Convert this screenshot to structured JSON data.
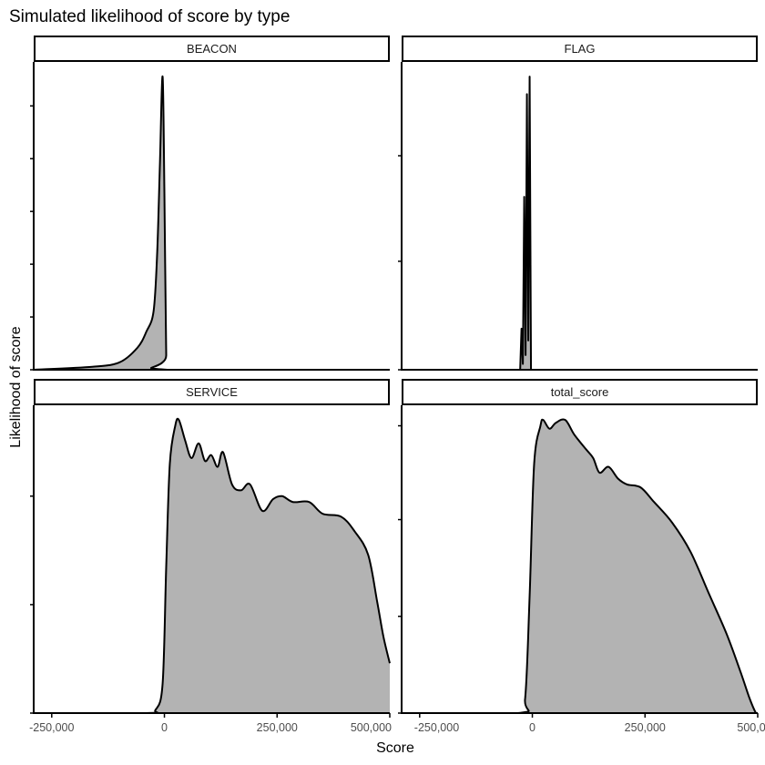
{
  "chart_data": {
    "type": "area",
    "title": "Simulated likelihood of score by type",
    "xlabel": "Score",
    "ylabel": "Likelihood of score",
    "xlim": [
      -290000,
      500000
    ],
    "xticks": [
      -250000,
      0,
      250000,
      500000
    ],
    "xtick_labels": [
      "-250,000",
      "0",
      "250,000",
      "500,000"
    ],
    "y_tick_labels_shown": false,
    "grid": false,
    "fill_color": "#b3b3b3",
    "line_color": "#000000",
    "facets": [
      {
        "name": "BEACON",
        "ylim": [
          0,
          1.05
        ],
        "yticks": [
          0,
          0.18,
          0.36,
          0.54,
          0.72,
          0.9
        ],
        "x": [
          -290000,
          -160000,
          -100000,
          -60000,
          -40000,
          -24000,
          -16000,
          -10000,
          -4000,
          0,
          4000,
          8000,
          500000
        ],
        "y": [
          0,
          0.01,
          0.025,
          0.075,
          0.13,
          0.2,
          0.4,
          0.7,
          1.0,
          0.6,
          0.05,
          0,
          0
        ]
      },
      {
        "name": "FLAG",
        "ylim": [
          0,
          1.05
        ],
        "yticks": [
          0,
          0.37,
          0.73
        ],
        "x": [
          -290000,
          -27000,
          -24000,
          -21000,
          -18000,
          -15000,
          -12000,
          -9000,
          -6000,
          -3000,
          500000
        ],
        "y": [
          0,
          0,
          0.14,
          0.02,
          0.59,
          0.05,
          0.94,
          0.1,
          1.0,
          0,
          0
        ]
      },
      {
        "name": "SERVICE",
        "ylim": [
          0,
          1.05
        ],
        "yticks": [
          0,
          0.37,
          0.74
        ],
        "x": [
          -290000,
          -40000,
          -20000,
          -4000,
          4000,
          12000,
          24000,
          32000,
          46000,
          60000,
          76000,
          90000,
          104000,
          118000,
          130000,
          150000,
          170000,
          190000,
          217000,
          241000,
          261000,
          285000,
          321000,
          351000,
          392000,
          422000,
          452000,
          472000,
          486000,
          500000
        ],
        "y": [
          0,
          0,
          0.01,
          0.1,
          0.5,
          0.85,
          0.98,
          1.0,
          0.93,
          0.87,
          0.92,
          0.86,
          0.88,
          0.84,
          0.89,
          0.78,
          0.76,
          0.78,
          0.69,
          0.73,
          0.74,
          0.72,
          0.72,
          0.68,
          0.67,
          0.62,
          0.54,
          0.38,
          0.26,
          0.17
        ]
      },
      {
        "name": "total_score",
        "ylim": [
          0,
          1.05
        ],
        "yticks": [
          0,
          0.33,
          0.66,
          0.98
        ],
        "x": [
          -290000,
          -32000,
          -16000,
          -6000,
          4000,
          18000,
          24000,
          38000,
          52000,
          73000,
          93000,
          119000,
          135000,
          149000,
          169000,
          190000,
          210000,
          240000,
          270000,
          310000,
          351000,
          391000,
          431000,
          462000,
          482000,
          496000,
          500000
        ],
        "y": [
          0,
          0,
          0.05,
          0.4,
          0.85,
          0.98,
          1.0,
          0.97,
          0.99,
          1.0,
          0.95,
          0.9,
          0.87,
          0.82,
          0.84,
          0.8,
          0.78,
          0.77,
          0.72,
          0.65,
          0.55,
          0.41,
          0.27,
          0.14,
          0.05,
          0,
          0
        ]
      }
    ]
  }
}
